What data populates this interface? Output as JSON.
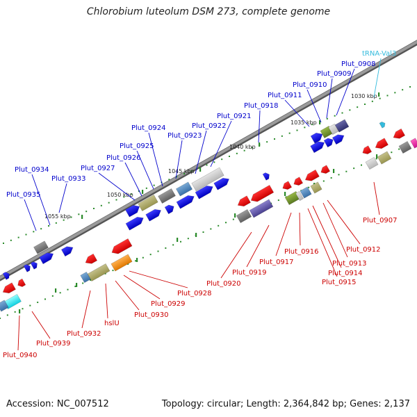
{
  "title": "Chlorobium luteolum DSM 273, complete genome",
  "footer": {
    "accession": "Accession: NC_007512",
    "topology": "Topology: circular; Length: 2,364,842 bp; Genes: 2,137"
  },
  "colors": {
    "forward_label": "#0000cc",
    "reverse_label": "#cc0000",
    "trna_label": "#33bbdd",
    "backbone": "#888888",
    "tick": "#2a8a2a"
  },
  "scale_labels": [
    "1030 kbp",
    "1035 kbp",
    "1040 kbp",
    "1045 kbp",
    "1050 kbp",
    "1055 kbp"
  ],
  "forward_labels": [
    "Plut_0935",
    "Plut_0934",
    "Plut_0933",
    "Plut_0927",
    "Plut_0926",
    "Plut_0925",
    "Plut_0924",
    "Plut_0923",
    "Plut_0922",
    "Plut_0921",
    "Plut_0918",
    "Plut_0911",
    "Plut_0910",
    "Plut_0909",
    "Plut_0908"
  ],
  "trna_labels": [
    "tRNA-Val3"
  ],
  "reverse_labels": [
    "Plut_0940",
    "Plut_0939",
    "Plut_0932",
    "hslU",
    "Plut_0930",
    "Plut_0929",
    "Plut_0928",
    "Plut_0920",
    "Plut_0919",
    "Plut_0917",
    "Plut_0916",
    "Plut_0915",
    "Plut_0914",
    "Plut_0913",
    "Plut_0912",
    "Plut_0907"
  ]
}
